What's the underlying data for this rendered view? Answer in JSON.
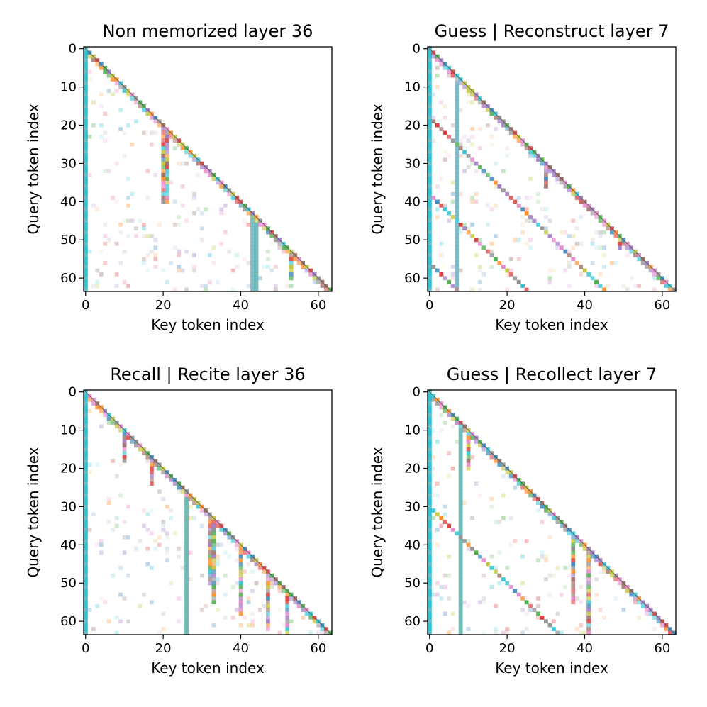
{
  "chart_data": [
    {
      "type": "heatmap",
      "title": "Non memorized layer 36",
      "xlabel": "Key token index",
      "ylabel": "Query token index",
      "xticks": [
        0,
        20,
        40,
        60
      ],
      "yticks": [
        0,
        10,
        20,
        30,
        40,
        50,
        60
      ],
      "xlim": [
        0,
        63
      ],
      "ylim": [
        63,
        0
      ],
      "grid": false,
      "mask": "lower-triangular",
      "features": {
        "sink_column": 0,
        "diagonal": true,
        "offset_diagonals": [],
        "strong_columns": [
          43,
          44
        ],
        "column_streaks": [
          [
            20,
            20,
            40
          ],
          [
            21,
            20,
            40
          ],
          [
            43,
            43,
            63
          ],
          [
            44,
            43,
            63
          ],
          [
            53,
            53,
            60
          ]
        ]
      }
    },
    {
      "type": "heatmap",
      "title": "Guess | Reconstruct layer 7",
      "xlabel": "Key token index",
      "ylabel": "Query token index",
      "xticks": [
        0,
        20,
        40,
        60
      ],
      "yticks": [
        0,
        10,
        20,
        30,
        40,
        50,
        60
      ],
      "xlim": [
        0,
        63
      ],
      "ylim": [
        63,
        0
      ],
      "grid": false,
      "mask": "lower-triangular",
      "features": {
        "sink_column": 0,
        "diagonal": true,
        "offset_diagonals": [
          18,
          38,
          56
        ],
        "strong_columns": [
          7
        ],
        "column_streaks": [
          [
            30,
            30,
            36
          ],
          [
            49,
            49,
            52
          ]
        ]
      }
    },
    {
      "type": "heatmap",
      "title": "Recall | Recite layer 36",
      "xlabel": "Key token index",
      "ylabel": "Query token index",
      "xticks": [
        0,
        20,
        40,
        60
      ],
      "yticks": [
        0,
        10,
        20,
        30,
        40,
        50,
        60
      ],
      "xlim": [
        0,
        63
      ],
      "ylim": [
        63,
        0
      ],
      "grid": false,
      "mask": "lower-triangular",
      "features": {
        "sink_column": 0,
        "diagonal": true,
        "offset_diagonals": [],
        "strong_columns": [
          26
        ],
        "column_streaks": [
          [
            10,
            10,
            18
          ],
          [
            17,
            17,
            24
          ],
          [
            32,
            32,
            50
          ],
          [
            33,
            33,
            55
          ],
          [
            40,
            40,
            58
          ],
          [
            47,
            47,
            62
          ],
          [
            52,
            52,
            63
          ]
        ]
      }
    },
    {
      "type": "heatmap",
      "title": "Guess | Recollect layer 7",
      "xlabel": "Key token index",
      "ylabel": "Query token index",
      "xticks": [
        0,
        20,
        40,
        60
      ],
      "yticks": [
        0,
        10,
        20,
        30,
        40,
        50,
        60
      ],
      "xlim": [
        0,
        63
      ],
      "ylim": [
        63,
        0
      ],
      "grid": false,
      "mask": "lower-triangular",
      "features": {
        "sink_column": 0,
        "diagonal": true,
        "offset_diagonals": [
          30
        ],
        "strong_columns": [
          8
        ],
        "column_streaks": [
          [
            10,
            10,
            20
          ],
          [
            41,
            41,
            63
          ],
          [
            37,
            37,
            55
          ]
        ]
      }
    }
  ]
}
